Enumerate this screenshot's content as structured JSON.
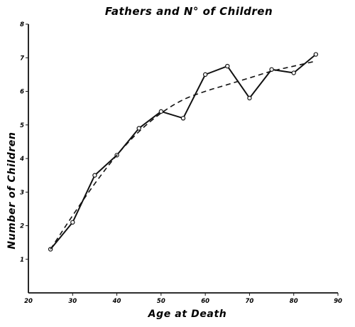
{
  "chart_data": {
    "type": "line",
    "title": "Fathers and N° of Children",
    "xlabel": "Age at Death",
    "ylabel": "Number of Children",
    "xlim": [
      20,
      90
    ],
    "ylim": [
      0,
      8
    ],
    "xticks": [
      20,
      30,
      40,
      50,
      60,
      70,
      80,
      90
    ],
    "yticks": [
      1,
      2,
      3,
      4,
      5,
      6,
      7,
      8
    ],
    "grid": false,
    "legend": "none",
    "series": [
      {
        "style": "solid-with-circle-markers",
        "x": [
          25,
          30,
          35,
          40,
          45,
          50,
          55,
          60,
          65,
          70,
          75,
          80,
          85
        ],
        "y": [
          1.3,
          2.1,
          3.5,
          4.1,
          4.9,
          5.4,
          5.2,
          6.5,
          6.75,
          5.8,
          6.65,
          6.55,
          7.1
        ]
      },
      {
        "style": "dashed-smooth",
        "x": [
          25,
          30,
          35,
          40,
          45,
          50,
          55,
          60,
          65,
          70,
          75,
          80,
          85
        ],
        "y": [
          1.3,
          2.3,
          3.25,
          4.1,
          4.8,
          5.35,
          5.75,
          6.0,
          6.2,
          6.4,
          6.6,
          6.75,
          6.9
        ]
      }
    ]
  }
}
